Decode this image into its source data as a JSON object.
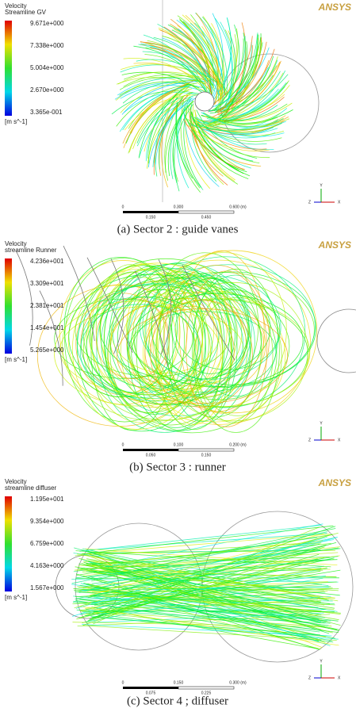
{
  "panels": [
    {
      "logo": "ANSYS",
      "legend_title": [
        "Velocity",
        "Streamline GV"
      ],
      "legend_ticks": [
        "9.671e+000",
        "7.338e+000",
        "5.004e+000",
        "2.670e+000",
        "3.365e-001"
      ],
      "unit": "[m s^-1]",
      "scale_top": [
        "0",
        "0.300",
        "0.600 (m)"
      ],
      "scale_bottom": [
        "0.150",
        "0.450"
      ],
      "triad": [
        "Y",
        "X",
        "Z"
      ],
      "caption": "(a) Sector 2 : guide vanes"
    },
    {
      "logo": "ANSYS",
      "legend_title": [
        "Velocity",
        "streamline Runner"
      ],
      "legend_ticks": [
        "4.236e+001",
        "3.309e+001",
        "2.381e+001",
        "1.454e+001",
        "5.265e+000"
      ],
      "unit": "[m s^-1]",
      "scale_top": [
        "0",
        "0.100",
        "0.200 (m)"
      ],
      "scale_bottom": [
        "0.050",
        "0.150"
      ],
      "triad": [
        "Y",
        "X",
        "Z"
      ],
      "caption": "(b) Sector 3 : runner"
    },
    {
      "logo": "ANSYS",
      "legend_title": [
        "Velocity",
        "streamline diffuser"
      ],
      "legend_ticks": [
        "1.195e+001",
        "9.354e+000",
        "6.759e+000",
        "4.163e+000",
        "1.567e+000"
      ],
      "unit": "[m s^-1]",
      "scale_top": [
        "0",
        "0.150",
        "0.300 (m)"
      ],
      "scale_bottom": [
        "0.075",
        "0.225"
      ],
      "triad": [
        "Y",
        "X",
        "Z"
      ],
      "caption": "(c) Sector 4 ; diffuser"
    }
  ]
}
